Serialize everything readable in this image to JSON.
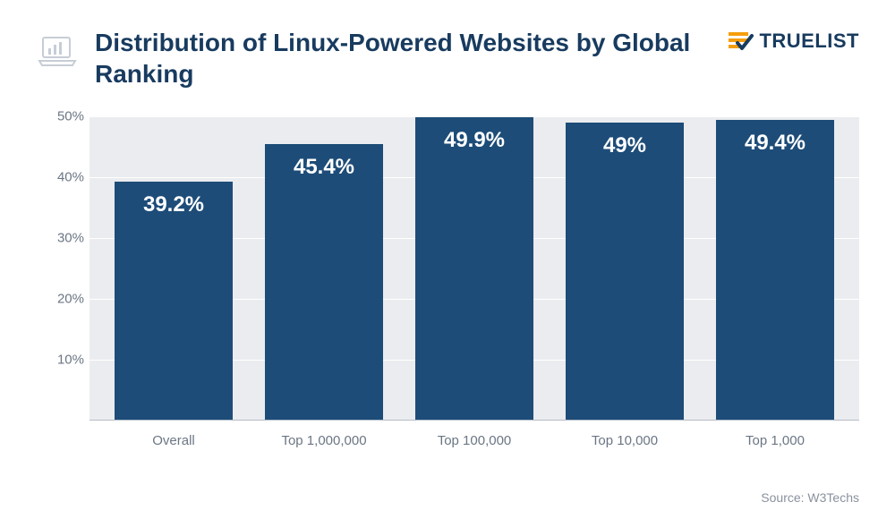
{
  "title": "Distribution of Linux-Powered Websites by Global Ranking",
  "brand_name": "TRUELIST",
  "source_label": "Source: W3Techs",
  "chart": {
    "type": "bar",
    "categories": [
      "Overall",
      "Top 1,000,000",
      "Top 100,000",
      "Top 10,000",
      "Top 1,000"
    ],
    "values": [
      39.2,
      45.4,
      49.9,
      49,
      49.4
    ],
    "value_labels": [
      "39.2%",
      "45.4%",
      "49.9%",
      "49%",
      "49.4%"
    ],
    "bar_color": "#1d4c78",
    "ylim": [
      0,
      50
    ],
    "ytick_step": 10,
    "yticks": [
      "10%",
      "20%",
      "30%",
      "40%",
      "50%"
    ],
    "background_color": "#eaecef",
    "grid_color": "#ffffff",
    "label_color": "#6b7684",
    "title_color": "#183b5f",
    "value_fontsize": 24,
    "label_fontsize": 15,
    "title_fontsize": 28,
    "brand_accent": "#f59e0b",
    "brand_check": "#183b5f"
  }
}
